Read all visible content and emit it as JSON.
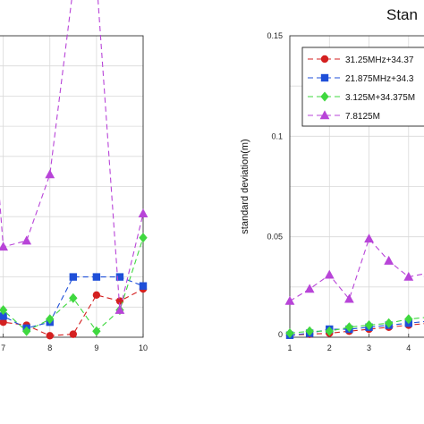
{
  "chart_data": [
    {
      "type": "line",
      "title": "",
      "xlabel": "",
      "ylabel": "",
      "xlim": [
        6.7,
        10
      ],
      "ylim": [
        0,
        1
      ],
      "xticks": [
        7,
        8,
        9,
        10
      ],
      "grid": true,
      "series": [
        {
          "marker": "circle",
          "color": "#d42020",
          "x": [
            6.7,
            7,
            7.5,
            8,
            8.5,
            9,
            9.5,
            10
          ],
          "y": [
            0.06,
            0.05,
            0.04,
            0.005,
            0.01,
            0.14,
            0.12,
            0.16
          ]
        },
        {
          "marker": "square",
          "color": "#1f4fd8",
          "x": [
            6.7,
            7,
            7.5,
            8,
            8.5,
            9,
            9.5,
            10
          ],
          "y": [
            0.06,
            0.07,
            0.03,
            0.05,
            0.2,
            0.2,
            0.2,
            0.17
          ]
        },
        {
          "marker": "diamond",
          "color": "#3fd83f",
          "x": [
            6.7,
            7,
            7.5,
            8,
            8.5,
            9,
            9.5,
            10
          ],
          "y": [
            0.08,
            0.09,
            0.02,
            0.06,
            0.13,
            0.02,
            0.09,
            0.33
          ]
        },
        {
          "marker": "triangle",
          "color": "#b844d8",
          "x": [
            6.7,
            7,
            7.5,
            8,
            8.5,
            9,
            9.5,
            10
          ],
          "y": [
            0.9,
            0.3,
            0.32,
            0.54,
            1.16,
            1.19,
            0.09,
            0.41
          ]
        }
      ]
    },
    {
      "type": "line",
      "title": "Stan",
      "xlabel": "",
      "ylabel": "standard deviation(m)",
      "xlim": [
        1,
        4.75
      ],
      "ylim": [
        0,
        0.15
      ],
      "xticks": [
        1,
        2,
        3,
        4
      ],
      "yticks": [
        0,
        0.05,
        0.1,
        0.15
      ],
      "ytick_labels": [
        "0",
        "0.05",
        "0.1",
        "0.15"
      ],
      "grid": true,
      "legend_position": "top-right",
      "series": [
        {
          "name": "31.25MHz+34.37",
          "marker": "circle",
          "color": "#d42020",
          "x": [
            1,
            1.5,
            2,
            2.5,
            3,
            3.5,
            4,
            4.5
          ],
          "y": [
            0.001,
            0.0015,
            0.002,
            0.003,
            0.004,
            0.005,
            0.006,
            0.007
          ]
        },
        {
          "name": "21.875MHz+34.3",
          "marker": "square",
          "color": "#1f4fd8",
          "x": [
            1,
            1.5,
            2,
            2.5,
            3,
            3.5,
            4,
            4.5
          ],
          "y": [
            0.001,
            0.002,
            0.004,
            0.004,
            0.005,
            0.006,
            0.007,
            0.008
          ]
        },
        {
          "name": "3.125M+34.375M",
          "marker": "diamond",
          "color": "#3fd83f",
          "x": [
            1,
            1.5,
            2,
            2.5,
            3,
            3.5,
            4,
            4.5
          ],
          "y": [
            0.002,
            0.003,
            0.003,
            0.005,
            0.006,
            0.007,
            0.009,
            0.01
          ]
        },
        {
          "name": "7.8125M",
          "marker": "triangle",
          "color": "#b844d8",
          "x": [
            1,
            1.5,
            2,
            2.5,
            3,
            3.5,
            4,
            4.5
          ],
          "y": [
            0.018,
            0.024,
            0.031,
            0.019,
            0.049,
            0.038,
            0.03,
            0.032
          ]
        }
      ]
    }
  ]
}
